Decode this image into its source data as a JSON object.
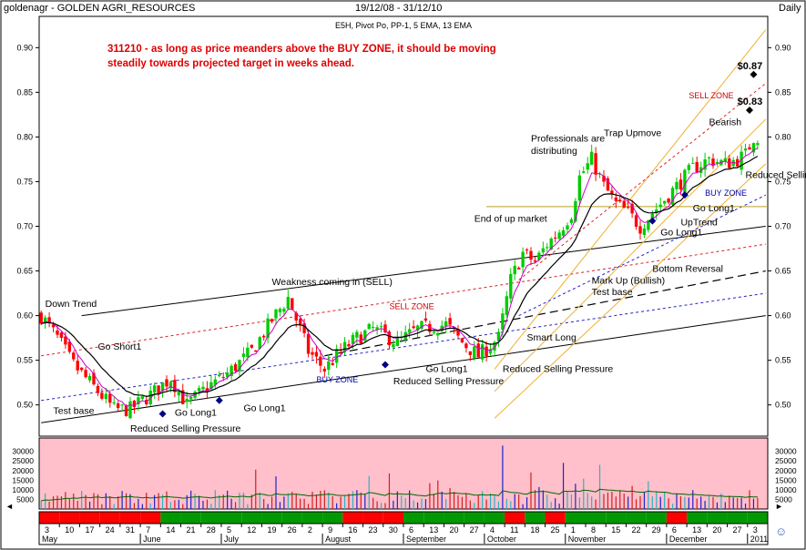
{
  "header": {
    "symbol": "goldenagr",
    "separator": " - ",
    "name": "GOLDEN AGRI_RESOURCES",
    "date_range": "19/12/08 - 31/12/10",
    "period": "Daily",
    "indicators": "E5H, Pivot Po, PP-1, 5 EMA, 13 EMA"
  },
  "commentary": {
    "line1": "311210 - as long as price meanders above the BUY ZONE, it should be moving",
    "line2": "steadily towards projected target in weeks ahead."
  },
  "colors": {
    "up": "#00cc00",
    "down": "#ff0000",
    "commentary": "#dd0000",
    "volume_bg": "#ffc0cb",
    "volume_avg": "#006600",
    "ema5": "#cc00cc",
    "ema13": "#000000"
  },
  "chart_data": {
    "type": "candlestick",
    "price_axis": {
      "ticks": [
        0.5,
        0.55,
        0.6,
        0.65,
        0.7,
        0.75,
        0.8,
        0.85,
        0.9
      ],
      "ylim": [
        0.465,
        0.935
      ]
    },
    "volume_axis": {
      "ticks": [
        5000,
        10000,
        15000,
        20000,
        25000,
        30000
      ],
      "ylim": [
        0,
        36000
      ]
    },
    "month_labels": [
      "May",
      "June",
      "July",
      "August",
      "September",
      "October",
      "November",
      "December",
      "2011"
    ],
    "day_labels": [
      "3",
      "10",
      "17",
      "24",
      "31",
      "7",
      "14",
      "21",
      "28",
      "5",
      "12",
      "19",
      "26",
      "2",
      "9",
      "16",
      "23",
      "30",
      "6",
      "13",
      "20",
      "27",
      "4",
      "11",
      "18",
      "25",
      "1",
      "8",
      "15",
      "22",
      "29",
      "6",
      "13",
      "20",
      "27",
      "3"
    ],
    "weekly_trend": [
      "down",
      "down",
      "down",
      "down",
      "down",
      "down",
      "up",
      "up",
      "up",
      "up",
      "up",
      "up",
      "up",
      "up",
      "up",
      "down",
      "down",
      "down",
      "up",
      "up",
      "up",
      "up",
      "up",
      "down",
      "up",
      "down",
      "up",
      "up",
      "up",
      "up",
      "up",
      "down",
      "up",
      "up",
      "up",
      "up"
    ],
    "price_points": [
      [
        0,
        0.6
      ],
      [
        4,
        0.575
      ],
      [
        8,
        0.545
      ],
      [
        13,
        0.52
      ],
      [
        18,
        0.495
      ],
      [
        22,
        0.495
      ],
      [
        28,
        0.515
      ],
      [
        32,
        0.53
      ],
      [
        36,
        0.5
      ],
      [
        41,
        0.52
      ],
      [
        46,
        0.535
      ],
      [
        52,
        0.56
      ],
      [
        57,
        0.595
      ],
      [
        61,
        0.62
      ],
      [
        66,
        0.56
      ],
      [
        70,
        0.54
      ],
      [
        74,
        0.56
      ],
      [
        78,
        0.575
      ],
      [
        82,
        0.585
      ],
      [
        88,
        0.57
      ],
      [
        93,
        0.585
      ],
      [
        100,
        0.59
      ],
      [
        104,
        0.57
      ],
      [
        108,
        0.555
      ],
      [
        113,
        0.575
      ],
      [
        116,
        0.64
      ],
      [
        119,
        0.67
      ],
      [
        122,
        0.66
      ],
      [
        125,
        0.68
      ],
      [
        128,
        0.695
      ],
      [
        131,
        0.715
      ],
      [
        133,
        0.755
      ],
      [
        136,
        0.775
      ],
      [
        139,
        0.745
      ],
      [
        142,
        0.725
      ],
      [
        145,
        0.715
      ],
      [
        148,
        0.7
      ],
      [
        151,
        0.715
      ],
      [
        154,
        0.73
      ],
      [
        157,
        0.745
      ],
      [
        161,
        0.765
      ],
      [
        165,
        0.775
      ],
      [
        169,
        0.77
      ],
      [
        172,
        0.775
      ],
      [
        174,
        0.78
      ],
      [
        176,
        0.8
      ]
    ],
    "buy_zone_line": [
      [
        0,
        0.505
      ],
      [
        179,
        0.625
      ]
    ],
    "sell_zone_line": [
      [
        0,
        0.555
      ],
      [
        179,
        0.68
      ]
    ],
    "support_lines": [
      [
        [
          0,
          0.48
        ],
        [
          179,
          0.6
        ]
      ],
      [
        [
          70,
          0.555
        ],
        [
          179,
          0.65
        ]
      ]
    ],
    "resistance_line": [
      [
        10,
        0.6
      ],
      [
        179,
        0.7
      ]
    ],
    "end_of_up_market": 0.722,
    "targets": [
      {
        "label": "$0.87",
        "value": 0.87
      },
      {
        "label": "$0.83",
        "value": 0.83
      }
    ],
    "annotations": [
      {
        "text": "Down Trend",
        "x": 1,
        "y": 0.61
      },
      {
        "text": "Test base",
        "x": 3,
        "y": 0.49
      },
      {
        "text": "Go Short1",
        "x": 14,
        "y": 0.562
      },
      {
        "text": "Go Long1",
        "x": 33,
        "y": 0.488
      },
      {
        "text": "Reduced Selling Pressure",
        "x": 22,
        "y": 0.47
      },
      {
        "text": "Go Long1",
        "x": 50,
        "y": 0.493
      },
      {
        "text": "Weakness coming in (SELL)",
        "x": 57,
        "y": 0.634
      },
      {
        "text": "SELL ZONE",
        "x": 86,
        "y": 0.607
      },
      {
        "text": "BUY ZONE",
        "x": 68,
        "y": 0.525
      },
      {
        "text": "Go Long1",
        "x": 95,
        "y": 0.537
      },
      {
        "text": "Reduced Selling Pressure",
        "x": 87,
        "y": 0.523
      },
      {
        "text": "Reduced Selling Pressure",
        "x": 114,
        "y": 0.537
      },
      {
        "text": "Smart Long",
        "x": 120,
        "y": 0.572
      },
      {
        "text": "End of up market",
        "x": 107,
        "y": 0.705
      },
      {
        "text": "Professionals are",
        "x": 121,
        "y": 0.795
      },
      {
        "text": "distributing",
        "x": 121,
        "y": 0.781
      },
      {
        "text": "Trap Upmove",
        "x": 139,
        "y": 0.801
      },
      {
        "text": "Mark Up (Bullish)",
        "x": 136,
        "y": 0.636
      },
      {
        "text": "Test base",
        "x": 136,
        "y": 0.623
      },
      {
        "text": "Bottom Reversal",
        "x": 151,
        "y": 0.649
      },
      {
        "text": "Go Long1",
        "x": 153,
        "y": 0.69
      },
      {
        "text": "UpTrend",
        "x": 158,
        "y": 0.701
      },
      {
        "text": "Go Long1",
        "x": 161,
        "y": 0.717
      },
      {
        "text": "BUY ZONE",
        "x": 164,
        "y": 0.734
      },
      {
        "text": "SELL ZONE",
        "x": 160,
        "y": 0.843
      },
      {
        "text": "Bearish",
        "x": 165,
        "y": 0.813
      },
      {
        "text": "Reduced Selling Pr",
        "x": 174,
        "y": 0.754
      }
    ],
    "signals": [
      {
        "type": "buy",
        "x": 30,
        "y": 0.49
      },
      {
        "type": "buy",
        "x": 44,
        "y": 0.505
      },
      {
        "type": "buy",
        "x": 85,
        "y": 0.545
      },
      {
        "type": "buy",
        "x": 151,
        "y": 0.706
      },
      {
        "type": "buy",
        "x": 159,
        "y": 0.735
      },
      {
        "type": "target",
        "x": 176,
        "y": 0.87
      },
      {
        "type": "target",
        "x": 175,
        "y": 0.83
      }
    ],
    "volume_spikes": [
      {
        "x": 114,
        "value": 33000
      },
      {
        "x": 138,
        "value": 23000
      },
      {
        "x": 53,
        "value": 20500
      },
      {
        "x": 129,
        "value": 24000
      },
      {
        "x": 121,
        "value": 19000
      },
      {
        "x": 58,
        "value": 17000
      }
    ]
  }
}
